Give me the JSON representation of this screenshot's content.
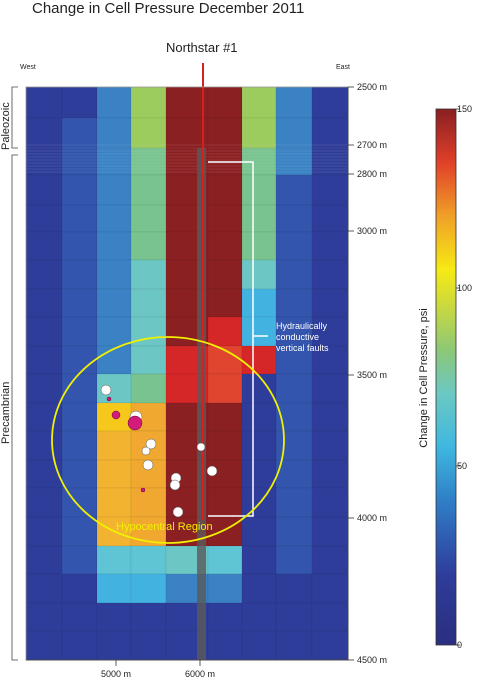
{
  "title": "Change in Cell Pressure December 2011",
  "well_name": "Northstar #1",
  "west_label": "West",
  "east_label": "East",
  "era_labels": [
    "Paleozoic",
    "Precambrian"
  ],
  "depth_labels": [
    "2500 m",
    "2700 m",
    "2800 m",
    "3000 m",
    "3500 m",
    "4000 m",
    "4500 m"
  ],
  "x_labels": [
    "5000 m",
    "6000 m"
  ],
  "annotations": {
    "faults": [
      "Hydraulically",
      "conductive",
      "vertical faults"
    ],
    "region": "Hypocentral Region"
  },
  "colorbar": {
    "title": "Change in Cell Pressure, psi",
    "ticks": [
      "150",
      "100",
      "50",
      "0"
    ]
  },
  "colors": {
    "well": "#d42020",
    "ellipse": "#f0f000",
    "fault_line": "#ffffff",
    "event_white": "#ffffff",
    "event_magenta": "#d41a7a"
  }
}
